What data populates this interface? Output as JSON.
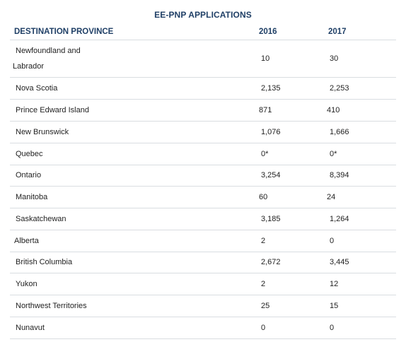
{
  "table": {
    "title": "EE-PNP APPLICATIONS",
    "headers": {
      "province": "DESTINATION PROVINCE",
      "y2016": "2016",
      "y2017": "2017"
    },
    "rows": [
      {
        "province_line1": "Newfoundland and",
        "province_line2": "Labrador",
        "y2016": "10",
        "y2017": "30"
      },
      {
        "province": "Nova Scotia",
        "y2016": "2,135",
        "y2017": "2,253"
      },
      {
        "province": "Prince Edward Island",
        "y2016": "871",
        "y2017": "410"
      },
      {
        "province": "New Brunswick",
        "y2016": "1,076",
        "y2017": "1,666"
      },
      {
        "province": "Quebec",
        "y2016": "0*",
        "y2017": "0*"
      },
      {
        "province": "Ontario",
        "y2016": "3,254",
        "y2017": "8,394"
      },
      {
        "province": "Manitoba",
        "y2016": "60",
        "y2017": "24"
      },
      {
        "province": "Saskatchewan",
        "y2016": "3,185",
        "y2017": "1,264"
      },
      {
        "province": "Alberta",
        "y2016": "2",
        "y2017": "0"
      },
      {
        "province": "British Columbia",
        "y2016": "2,672",
        "y2017": "3,445"
      },
      {
        "province": "Yukon",
        "y2016": "2",
        "y2017": "12"
      },
      {
        "province": "Northwest Territories",
        "y2016": "25",
        "y2017": "15"
      },
      {
        "province": "Nunavut",
        "y2016": "0",
        "y2017": "0"
      }
    ]
  },
  "colors": {
    "header_text": "#1f3f66",
    "body_text": "#222222",
    "rule": "#d9dde1"
  }
}
